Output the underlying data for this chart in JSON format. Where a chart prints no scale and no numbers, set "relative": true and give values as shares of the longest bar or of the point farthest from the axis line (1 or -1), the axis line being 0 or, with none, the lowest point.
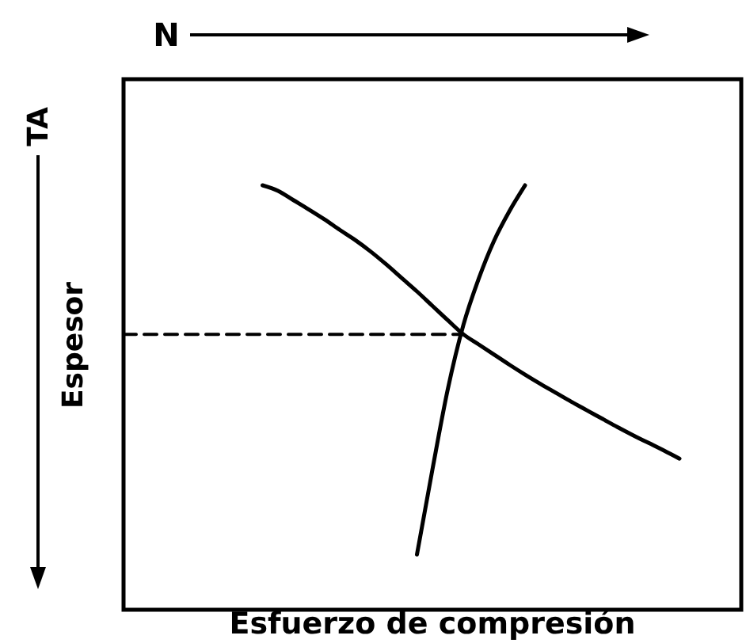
{
  "chart_data": {
    "type": "line",
    "relative": true,
    "xlabel": "Esfuerzo de compresión",
    "ylabel": "Espesor",
    "annotations": [
      "N",
      "TA"
    ],
    "line_style": "solid",
    "categories": [
      null,
      null,
      null,
      null,
      null,
      null,
      null,
      null,
      null,
      null,
      null,
      null,
      null,
      null,
      null,
      null,
      null,
      null,
      null,
      null,
      null,
      null,
      null,
      null,
      null,
      null,
      null,
      null,
      null,
      null,
      null,
      null,
      null,
      null,
      null,
      null,
      null,
      null,
      null,
      null,
      null
    ],
    "series": [
      {
        "color": "#000000",
        "values": [
          null,
          null,
          null,
          null,
          null,
          null,
          null,
          null,
          null,
          1,
          0.987,
          0.965,
          0.943,
          0.92,
          0.895,
          0.871,
          0.844,
          0.814,
          0.782,
          0.75,
          0.716,
          0.682,
          0.649,
          0.625,
          0.601,
          0.577,
          0.554,
          0.532,
          0.511,
          0.49,
          0.47,
          0.45,
          0.43,
          0.411,
          0.393,
          0.375,
          0.356,
          null,
          null,
          null,
          null
        ]
      },
      {
        "color": "#000000",
        "values": [
          null,
          null,
          null,
          null,
          null,
          null,
          null,
          null,
          null,
          null,
          null,
          null,
          null,
          null,
          null,
          null,
          null,
          null,
          null,
          0.13,
          0.33,
          0.52,
          0.67,
          0.78,
          0.87,
          0.94,
          1,
          null,
          null,
          null,
          null,
          null,
          null,
          null,
          null,
          null,
          null,
          null,
          null,
          null,
          null
        ]
      },
      {
        "color": "#000000",
        "line_style": "dashed",
        "values": [
          0.649,
          0.649,
          0.649,
          0.649,
          0.649,
          0.649,
          0.649,
          0.649,
          0.649,
          0.649,
          0.649,
          0.649,
          0.649,
          0.649,
          0.649,
          0.649,
          0.649,
          0.649,
          0.649,
          0.649,
          0.649,
          0.649,
          0.649,
          null,
          null,
          null,
          null,
          null,
          null,
          null,
          null,
          null,
          null,
          null,
          null,
          null,
          null,
          null,
          null,
          null,
          null
        ]
      }
    ]
  }
}
